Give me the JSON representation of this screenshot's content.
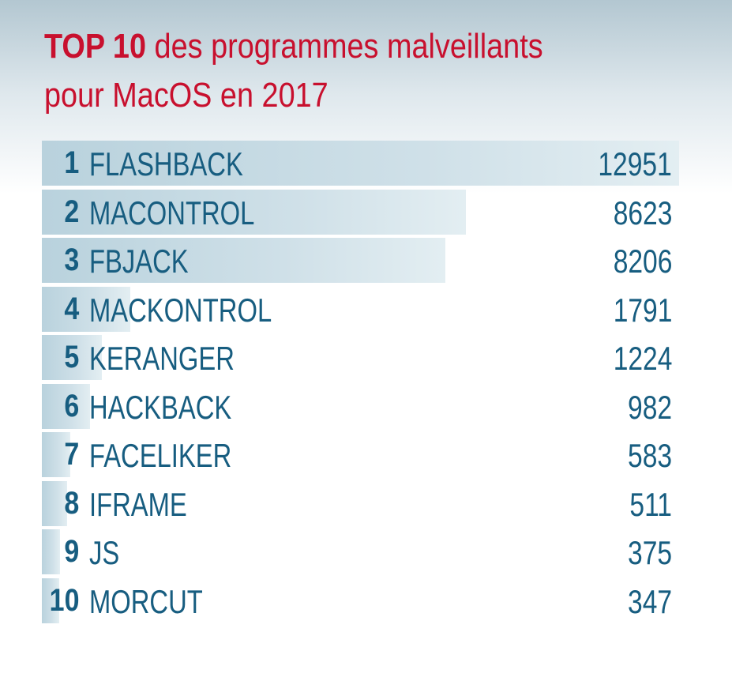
{
  "chart_data": {
    "type": "bar",
    "orientation": "horizontal",
    "title_bold": "TOP 10",
    "title_rest": " des programmes malveillants",
    "title_line2": "pour MacOS en 2017",
    "ranks": [
      "1",
      "2",
      "3",
      "4",
      "5",
      "6",
      "7",
      "8",
      "9",
      "10"
    ],
    "categories": [
      "FLASHBACK",
      "MACONTROL",
      "FBJACK",
      "MACKONTROL",
      "KERANGER",
      "HACKBACK",
      "FACELIKER",
      "IFRAME",
      "JS",
      "MORCUT"
    ],
    "values": [
      12951,
      8623,
      8206,
      1791,
      1224,
      982,
      583,
      511,
      375,
      347
    ],
    "xlim": [
      0,
      12951
    ]
  },
  "colors": {
    "title": "#c8102e",
    "text": "#175d80"
  }
}
